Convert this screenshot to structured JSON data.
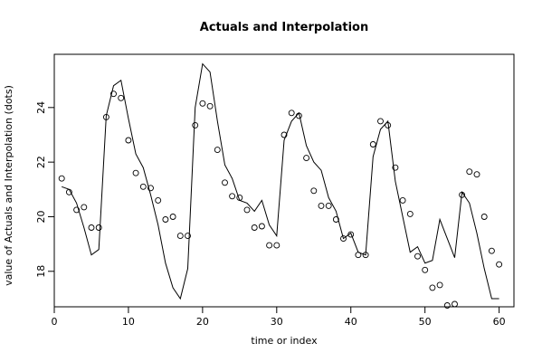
{
  "chart_data": {
    "type": "line+scatter",
    "title": "Actuals and Interpolation",
    "xlabel": "time or index",
    "ylabel": "value of Actuals and Interpolation (dots)",
    "xlim": [
      0,
      62
    ],
    "ylim": [
      16.7,
      25.95
    ],
    "xticks": [
      0,
      10,
      20,
      30,
      40,
      50,
      60
    ],
    "yticks": [
      18,
      20,
      22,
      24
    ],
    "grid": false,
    "legend": "none",
    "series": [
      {
        "kind": "line",
        "x": [
          1,
          2,
          3,
          4,
          5,
          6,
          7,
          8,
          9,
          10,
          11,
          12,
          13,
          14,
          15,
          16,
          17,
          18,
          19,
          20,
          21,
          22,
          23,
          24,
          25,
          26,
          27,
          28,
          29,
          30,
          31,
          32,
          33,
          34,
          35,
          36,
          37,
          38,
          39,
          40,
          41,
          42,
          43,
          44,
          45,
          46,
          47,
          48,
          49,
          50,
          51,
          52,
          53,
          54,
          55,
          56,
          57,
          58,
          59,
          60
        ],
        "y": [
          21.1,
          21.0,
          20.5,
          19.6,
          18.6,
          18.8,
          23.7,
          24.8,
          25.0,
          23.6,
          22.3,
          21.8,
          20.8,
          19.7,
          18.3,
          17.4,
          17.0,
          18.1,
          24.0,
          25.6,
          25.3,
          23.5,
          21.9,
          21.4,
          20.6,
          20.5,
          20.2,
          20.6,
          19.7,
          19.3,
          22.8,
          23.5,
          23.8,
          22.6,
          22.0,
          21.7,
          20.7,
          20.2,
          19.2,
          19.4,
          18.7,
          18.6,
          22.2,
          23.2,
          23.5,
          21.3,
          20.0,
          18.7,
          18.9,
          18.3,
          18.4,
          19.9,
          19.2,
          18.5,
          20.9,
          20.5,
          19.4,
          18.1,
          17.0,
          17.0
        ]
      },
      {
        "kind": "points",
        "x": [
          1,
          2,
          3,
          4,
          5,
          6,
          7,
          8,
          9,
          10,
          11,
          12,
          13,
          14,
          15,
          16,
          17,
          18,
          19,
          20,
          21,
          22,
          23,
          24,
          25,
          26,
          27,
          28,
          29,
          30,
          31,
          32,
          33,
          34,
          35,
          36,
          37,
          38,
          39,
          40,
          41,
          42,
          43,
          44,
          45,
          46,
          47,
          48,
          49,
          50,
          51,
          52,
          53,
          54,
          55,
          56,
          57,
          58,
          59,
          60
        ],
        "y": [
          21.4,
          20.9,
          20.25,
          20.35,
          19.6,
          19.6,
          23.65,
          24.5,
          24.35,
          22.8,
          21.6,
          21.1,
          21.05,
          20.6,
          19.9,
          20.0,
          19.3,
          19.3,
          23.35,
          24.15,
          24.05,
          22.45,
          21.25,
          20.75,
          20.7,
          20.25,
          19.6,
          19.65,
          18.95,
          18.95,
          23.0,
          23.8,
          23.7,
          22.15,
          20.95,
          20.4,
          20.4,
          19.9,
          19.2,
          19.35,
          18.6,
          18.6,
          22.65,
          23.5,
          23.35,
          21.8,
          20.6,
          20.1,
          18.55,
          18.05,
          17.4,
          17.5,
          16.75,
          16.8,
          20.8,
          21.65,
          21.55,
          20.0,
          18.75,
          18.25
        ]
      }
    ]
  }
}
